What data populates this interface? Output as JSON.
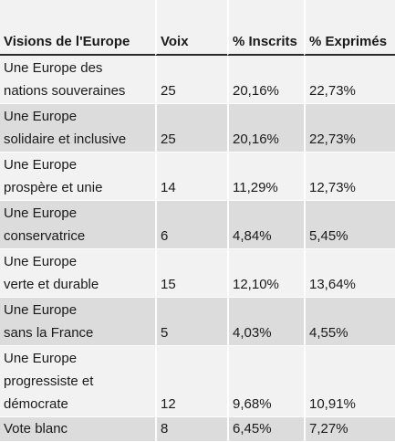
{
  "headers": {
    "col1": "Visions de l'Europe",
    "col2": "Voix",
    "col3": "% Inscrits",
    "col4": "% Exprimés"
  },
  "rows": [
    {
      "label_lines": [
        "Une Europe des",
        "nations souveraines"
      ],
      "voix": "25",
      "inscrits": "20,16%",
      "exprimes": "22,73%"
    },
    {
      "label_lines": [
        "Une Europe",
        "solidaire et inclusive"
      ],
      "voix": "25",
      "inscrits": "20,16%",
      "exprimes": "22,73%"
    },
    {
      "label_lines": [
        "Une Europe",
        "prospère et unie"
      ],
      "voix": "14",
      "inscrits": "11,29%",
      "exprimes": "12,73%"
    },
    {
      "label_lines": [
        "Une Europe",
        "conservatrice"
      ],
      "voix": "6",
      "inscrits": "4,84%",
      "exprimes": "5,45%"
    },
    {
      "label_lines": [
        "Une Europe",
        "verte et durable"
      ],
      "voix": "15",
      "inscrits": "12,10%",
      "exprimes": "13,64%"
    },
    {
      "label_lines": [
        "Une Europe",
        "sans la France"
      ],
      "voix": "5",
      "inscrits": "4,03%",
      "exprimes": "4,55%"
    },
    {
      "label_lines": [
        "Une Europe",
        "progressiste et",
        "démocrate"
      ],
      "voix": "12",
      "inscrits": "9,68%",
      "exprimes": "10,91%"
    },
    {
      "label_lines": [
        "Vote blanc"
      ],
      "voix": "8",
      "inscrits": "6,45%",
      "exprimes": "7,27%"
    }
  ]
}
